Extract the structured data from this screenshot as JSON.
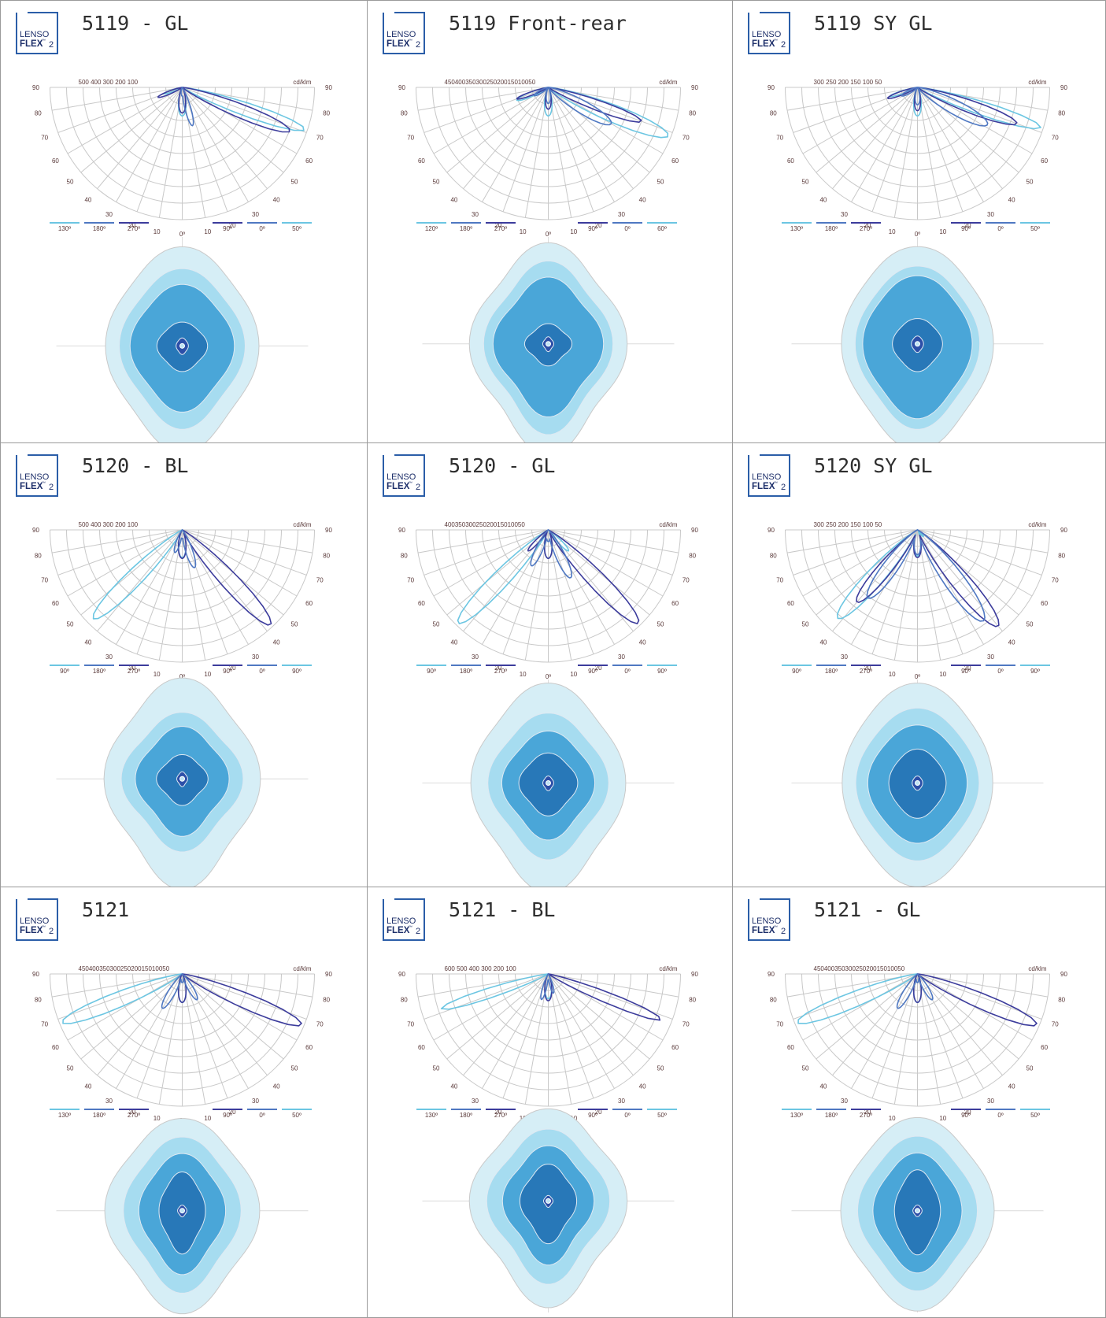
{
  "brand": {
    "line1": "LENSO",
    "line2": "FLEX",
    "tm": "™",
    "version": "2"
  },
  "colors": {
    "frame": "#2b5ea8",
    "curve_dark": "#3c3c9c",
    "curve_mid": "#4f78c2",
    "curve_light": "#6cc6e2",
    "iso_outer": "#d6eef6",
    "iso_2": "#a6dcf0",
    "iso_3": "#4aa6d8",
    "iso_4": "#2878b8",
    "iso_5": "#2c4fa8",
    "grid": "#c8c8c8",
    "label": "#5a3a3a"
  },
  "units": "cd/klm",
  "angle_labels": [
    "90",
    "80",
    "70",
    "60",
    "50",
    "40",
    "30",
    "20",
    "10",
    "0º",
    "10",
    "20",
    "30",
    "40",
    "50",
    "60",
    "70",
    "80",
    "90"
  ],
  "panels": [
    {
      "title": "5119 - GL",
      "scale": [
        "500",
        "400",
        "300",
        "200",
        "100"
      ],
      "legend_left": [
        "130º",
        "180º",
        "270º"
      ],
      "legend_right": [
        "90º",
        "0º",
        "50º"
      ],
      "curves": [
        {
          "role": "light",
          "peak": 71,
          "width": 7,
          "r": 0.98,
          "lobe": 0.2
        },
        {
          "role": "dark",
          "peak": 68,
          "width": 8,
          "r": 0.88,
          "lobe": 0.3
        },
        {
          "role": "mid",
          "peak": 15,
          "width": 10,
          "r": 0.3,
          "lobe": 0
        }
      ],
      "iso": {
        "w": [
          1.0,
          0.82,
          0.68,
          0.33,
          0.08
        ],
        "h": [
          1.0,
          0.78,
          0.62,
          0.24,
          0.08
        ],
        "cy": 0.53,
        "bump": 0.06,
        "notch": 0.04
      }
    },
    {
      "title": "5119 Front-rear",
      "scale": [
        "450",
        "400",
        "350",
        "300",
        "250",
        "200",
        "150",
        "100",
        "50"
      ],
      "legend_left": [
        "120º",
        "180º",
        "270º"
      ],
      "legend_right": [
        "90º",
        "0º",
        "60º"
      ],
      "curves": [
        {
          "role": "light",
          "peak": 68,
          "width": 9,
          "r": 0.98,
          "lobe": 0.35
        },
        {
          "role": "dark",
          "peak": 70,
          "width": 7,
          "r": 0.75,
          "lobe": 0.45
        },
        {
          "role": "mid",
          "peak": 60,
          "width": 12,
          "r": 0.55,
          "lobe": 0.3
        }
      ],
      "iso": {
        "w": [
          1.0,
          0.82,
          0.7,
          0.3,
          0.07
        ],
        "h": [
          1.0,
          0.82,
          0.66,
          0.2,
          0.07
        ],
        "cy": 0.52,
        "bump": 0.09,
        "notch": 0.05
      }
    },
    {
      "title": "5119 SY GL",
      "scale": [
        "300",
        "250",
        "200",
        "150",
        "100",
        "50"
      ],
      "legend_left": [
        "130º",
        "180º",
        "270º"
      ],
      "legend_right": [
        "90º",
        "0º",
        "50º"
      ],
      "curves": [
        {
          "role": "light",
          "peak": 72,
          "width": 7,
          "r": 0.98,
          "lobe": 0.3
        },
        {
          "role": "dark",
          "peak": 70,
          "width": 8,
          "r": 0.8,
          "lobe": 0.4
        },
        {
          "role": "mid",
          "peak": 62,
          "width": 12,
          "r": 0.6,
          "lobe": 0.3
        }
      ],
      "iso": {
        "w": [
          1.0,
          0.82,
          0.72,
          0.33,
          0.08
        ],
        "h": [
          1.0,
          0.8,
          0.7,
          0.26,
          0.08
        ],
        "cy": 0.52,
        "bump": 0.05,
        "notch": 0.05
      }
    },
    {
      "title": "5120 - BL",
      "scale": [
        "500",
        "400",
        "300",
        "200",
        "100"
      ],
      "legend_left": [
        "90º",
        "180º",
        "270º"
      ],
      "legend_right": [
        "90º",
        "0º",
        "90º"
      ],
      "curves": [
        {
          "role": "light",
          "peak": -45,
          "width": 9,
          "r": 0.95,
          "lobe": 0
        },
        {
          "role": "dark",
          "peak": 43,
          "width": 9,
          "r": 0.98,
          "lobe": 0
        },
        {
          "role": "mid",
          "peak": 18,
          "width": 12,
          "r": 0.3,
          "lobe": 0.8
        }
      ],
      "iso": {
        "w": [
          1.0,
          0.78,
          0.6,
          0.33,
          0.07
        ],
        "h": [
          1.0,
          0.66,
          0.52,
          0.24,
          0.07
        ],
        "cy": 0.48,
        "bump": 0.08,
        "notch": 0.05
      }
    },
    {
      "title": "5120 - GL",
      "scale": [
        "400",
        "350",
        "300",
        "250",
        "200",
        "150",
        "100",
        "50"
      ],
      "legend_left": [
        "90º",
        "180º",
        "270º"
      ],
      "legend_right": [
        "90º",
        "0º",
        "90º"
      ],
      "curves": [
        {
          "role": "light",
          "peak": -44,
          "width": 9,
          "r": 0.98,
          "lobe": 0.3
        },
        {
          "role": "dark",
          "peak": 44,
          "width": 9,
          "r": 0.98,
          "lobe": 0.3
        },
        {
          "role": "mid",
          "peak": 25,
          "width": 12,
          "r": 0.4,
          "lobe": 1
        }
      ],
      "iso": {
        "w": [
          1.0,
          0.78,
          0.6,
          0.38,
          0.07
        ],
        "h": [
          1.0,
          0.7,
          0.52,
          0.3,
          0.07
        ],
        "cy": 0.5,
        "bump": 0.07,
        "notch": 0.05
      }
    },
    {
      "title": "5120 SY GL",
      "scale": [
        "300",
        "250",
        "200",
        "150",
        "100",
        "50"
      ],
      "legend_left": [
        "90º",
        "180º",
        "270º"
      ],
      "legend_right": [
        "90º",
        "0º",
        "90º"
      ],
      "curves": [
        {
          "role": "light",
          "peak": -42,
          "width": 10,
          "r": 0.9,
          "lobe": 0.1
        },
        {
          "role": "dark",
          "peak": 40,
          "width": 10,
          "r": 0.95,
          "lobe": 1
        },
        {
          "role": "mid",
          "peak": 36,
          "width": 12,
          "r": 0.85,
          "lobe": 1
        }
      ],
      "iso": {
        "w": [
          1.0,
          0.82,
          0.66,
          0.38,
          0.07
        ],
        "h": [
          1.0,
          0.75,
          0.58,
          0.34,
          0.07
        ],
        "cy": 0.5,
        "bump": 0.04,
        "notch": 0.02
      }
    },
    {
      "title": "5121",
      "scale": [
        "450",
        "400",
        "350",
        "300",
        "250",
        "200",
        "150",
        "100",
        "50"
      ],
      "legend_left": [
        "130º",
        "180º",
        "270º"
      ],
      "legend_right": [
        "90º",
        "0º",
        "50º"
      ],
      "curves": [
        {
          "role": "light",
          "peak": -68,
          "width": 8,
          "r": 0.98,
          "lobe": 0
        },
        {
          "role": "dark",
          "peak": 67,
          "width": 8,
          "r": 0.98,
          "lobe": 0
        },
        {
          "role": "mid",
          "peak": -30,
          "width": 12,
          "r": 0.3,
          "lobe": 1
        }
      ],
      "iso": {
        "w": [
          1.0,
          0.76,
          0.56,
          0.3,
          0.06
        ],
        "h": [
          1.0,
          0.8,
          0.62,
          0.42,
          0.06
        ],
        "cy": 0.45,
        "bump": 0.07,
        "notch": 0.06
      }
    },
    {
      "title": "5121 - BL",
      "scale": [
        "600",
        "500",
        "400",
        "300",
        "200",
        "100"
      ],
      "legend_left": [
        "130º",
        "180º",
        "270º"
      ],
      "legend_right": [
        "90º",
        "0º",
        "50º"
      ],
      "curves": [
        {
          "role": "light",
          "peak": -72,
          "width": 6,
          "r": 0.85,
          "lobe": 0
        },
        {
          "role": "dark",
          "peak": 68,
          "width": 6,
          "r": 0.92,
          "lobe": 0
        },
        {
          "role": "mid",
          "peak": -15,
          "width": 10,
          "r": 0.2,
          "lobe": 1
        }
      ],
      "iso": {
        "w": [
          1.0,
          0.78,
          0.58,
          0.36,
          0.06
        ],
        "h": [
          1.0,
          0.78,
          0.6,
          0.4,
          0.06
        ],
        "cy": 0.4,
        "bump": 0.09,
        "notch": 0.08
      }
    },
    {
      "title": "5121 - GL",
      "scale": [
        "450",
        "400",
        "350",
        "300",
        "250",
        "200",
        "150",
        "100",
        "50"
      ],
      "legend_left": [
        "130º",
        "180º",
        "270º"
      ],
      "legend_right": [
        "90º",
        "0º",
        "50º"
      ],
      "curves": [
        {
          "role": "light",
          "peak": -68,
          "width": 8,
          "r": 0.98,
          "lobe": 0
        },
        {
          "role": "dark",
          "peak": 67,
          "width": 8,
          "r": 0.98,
          "lobe": 0
        },
        {
          "role": "mid",
          "peak": -30,
          "width": 12,
          "r": 0.3,
          "lobe": 1
        }
      ],
      "iso": {
        "w": [
          1.0,
          0.78,
          0.58,
          0.3,
          0.06
        ],
        "h": [
          1.0,
          0.8,
          0.62,
          0.44,
          0.06
        ],
        "cy": 0.45,
        "bump": 0.06,
        "notch": 0.04
      }
    }
  ]
}
